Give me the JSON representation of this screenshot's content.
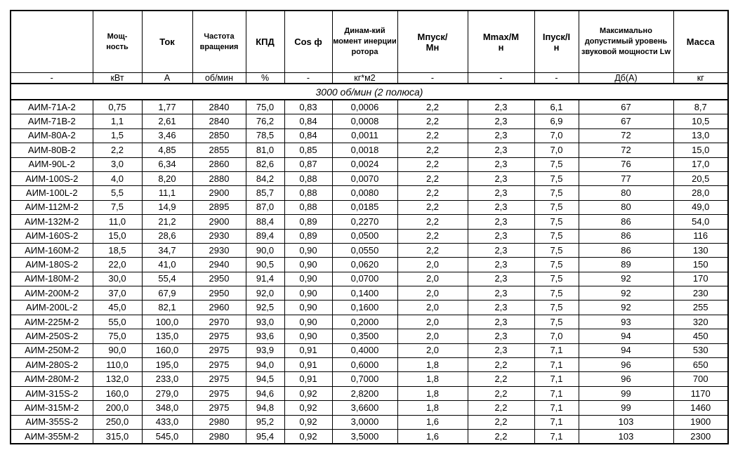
{
  "headers": [
    "",
    "Мощ-\nность",
    "Ток",
    "Частота вращения",
    "КПД",
    "Cos ф",
    "Динам-кий момент инерции ротора",
    "Мпуск/\nМн",
    "Мmax/М\nн",
    "Iпуск/I\nн",
    "Максимально допустимый уровень звуковой мощности Lw",
    "Масса"
  ],
  "units": [
    "-",
    "кВт",
    "А",
    "об/мин",
    "%",
    "-",
    "кг*м2",
    "-",
    "-",
    "-",
    "Дб(А)",
    "кг"
  ],
  "section_title": "3000 об/мин (2 полюса)",
  "rows": [
    [
      "АИМ-71А-2",
      "0,75",
      "1,77",
      "2840",
      "75,0",
      "0,83",
      "0,0006",
      "2,2",
      "2,3",
      "6,1",
      "67",
      "8,7"
    ],
    [
      "АИМ-71В-2",
      "1,1",
      "2,61",
      "2840",
      "76,2",
      "0,84",
      "0,0008",
      "2,2",
      "2,3",
      "6,9",
      "67",
      "10,5"
    ],
    [
      "АИМ-80А-2",
      "1,5",
      "3,46",
      "2850",
      "78,5",
      "0,84",
      "0,0011",
      "2,2",
      "2,3",
      "7,0",
      "72",
      "13,0"
    ],
    [
      "АИМ-80В-2",
      "2,2",
      "4,85",
      "2855",
      "81,0",
      "0,85",
      "0,0018",
      "2,2",
      "2,3",
      "7,0",
      "72",
      "15,0"
    ],
    [
      "АИМ-90L-2",
      "3,0",
      "6,34",
      "2860",
      "82,6",
      "0,87",
      "0,0024",
      "2,2",
      "2,3",
      "7,5",
      "76",
      "17,0"
    ],
    [
      "АИМ-100S-2",
      "4,0",
      "8,20",
      "2880",
      "84,2",
      "0,88",
      "0,0070",
      "2,2",
      "2,3",
      "7,5",
      "77",
      "20,5"
    ],
    [
      "АИМ-100L-2",
      "5,5",
      "11,1",
      "2900",
      "85,7",
      "0,88",
      "0,0080",
      "2,2",
      "2,3",
      "7,5",
      "80",
      "28,0"
    ],
    [
      "АИМ-112М-2",
      "7,5",
      "14,9",
      "2895",
      "87,0",
      "0,88",
      "0,0185",
      "2,2",
      "2,3",
      "7,5",
      "80",
      "49,0"
    ],
    [
      "АИМ-132М-2",
      "11,0",
      "21,2",
      "2900",
      "88,4",
      "0,89",
      "0,2270",
      "2,2",
      "2,3",
      "7,5",
      "86",
      "54,0"
    ],
    [
      "АИМ-160S-2",
      "15,0",
      "28,6",
      "2930",
      "89,4",
      "0,89",
      "0,0500",
      "2,2",
      "2,3",
      "7,5",
      "86",
      "116"
    ],
    [
      "АИМ-160М-2",
      "18,5",
      "34,7",
      "2930",
      "90,0",
      "0,90",
      "0,0550",
      "2,2",
      "2,3",
      "7,5",
      "86",
      "130"
    ],
    [
      "АИМ-180S-2",
      "22,0",
      "41,0",
      "2940",
      "90,5",
      "0,90",
      "0,0620",
      "2,0",
      "2,3",
      "7,5",
      "89",
      "150"
    ],
    [
      "АИМ-180М-2",
      "30,0",
      "55,4",
      "2950",
      "91,4",
      "0,90",
      "0,0700",
      "2,0",
      "2,3",
      "7,5",
      "92",
      "170"
    ],
    [
      "АИМ-200М-2",
      "37,0",
      "67,9",
      "2950",
      "92,0",
      "0,90",
      "0,1400",
      "2,0",
      "2,3",
      "7,5",
      "92",
      "230"
    ],
    [
      "АИМ-200L-2",
      "45,0",
      "82,1",
      "2960",
      "92,5",
      "0,90",
      "0,1600",
      "2,0",
      "2,3",
      "7,5",
      "92",
      "255"
    ],
    [
      "АИМ-225М-2",
      "55,0",
      "100,0",
      "2970",
      "93,0",
      "0,90",
      "0,2000",
      "2,0",
      "2,3",
      "7,5",
      "93",
      "320"
    ],
    [
      "АИМ-250S-2",
      "75,0",
      "135,0",
      "2975",
      "93,6",
      "0,90",
      "0,3500",
      "2,0",
      "2,3",
      "7,0",
      "94",
      "450"
    ],
    [
      "АИМ-250М-2",
      "90,0",
      "160,0",
      "2975",
      "93,9",
      "0,91",
      "0,4000",
      "2,0",
      "2,3",
      "7,1",
      "94",
      "530"
    ],
    [
      "АИМ-280S-2",
      "110,0",
      "195,0",
      "2975",
      "94,0",
      "0,91",
      "0,6000",
      "1,8",
      "2,2",
      "7,1",
      "96",
      "650"
    ],
    [
      "АИМ-280М-2",
      "132,0",
      "233,0",
      "2975",
      "94,5",
      "0,91",
      "0,7000",
      "1,8",
      "2,2",
      "7,1",
      "96",
      "700"
    ],
    [
      "АИМ-315S-2",
      "160,0",
      "279,0",
      "2975",
      "94,6",
      "0,92",
      "2,8200",
      "1,8",
      "2,2",
      "7,1",
      "99",
      "1170"
    ],
    [
      "АИМ-315М-2",
      "200,0",
      "348,0",
      "2975",
      "94,8",
      "0,92",
      "3,6600",
      "1,8",
      "2,2",
      "7,1",
      "99",
      "1460"
    ],
    [
      "АИМ-355S-2",
      "250,0",
      "433,0",
      "2980",
      "95,2",
      "0,92",
      "3,0000",
      "1,6",
      "2,2",
      "7,1",
      "103",
      "1900"
    ],
    [
      "АИМ-355М-2",
      "315,0",
      "545,0",
      "2980",
      "95,4",
      "0,92",
      "3,5000",
      "1,6",
      "2,2",
      "7,1",
      "103",
      "2300"
    ]
  ]
}
